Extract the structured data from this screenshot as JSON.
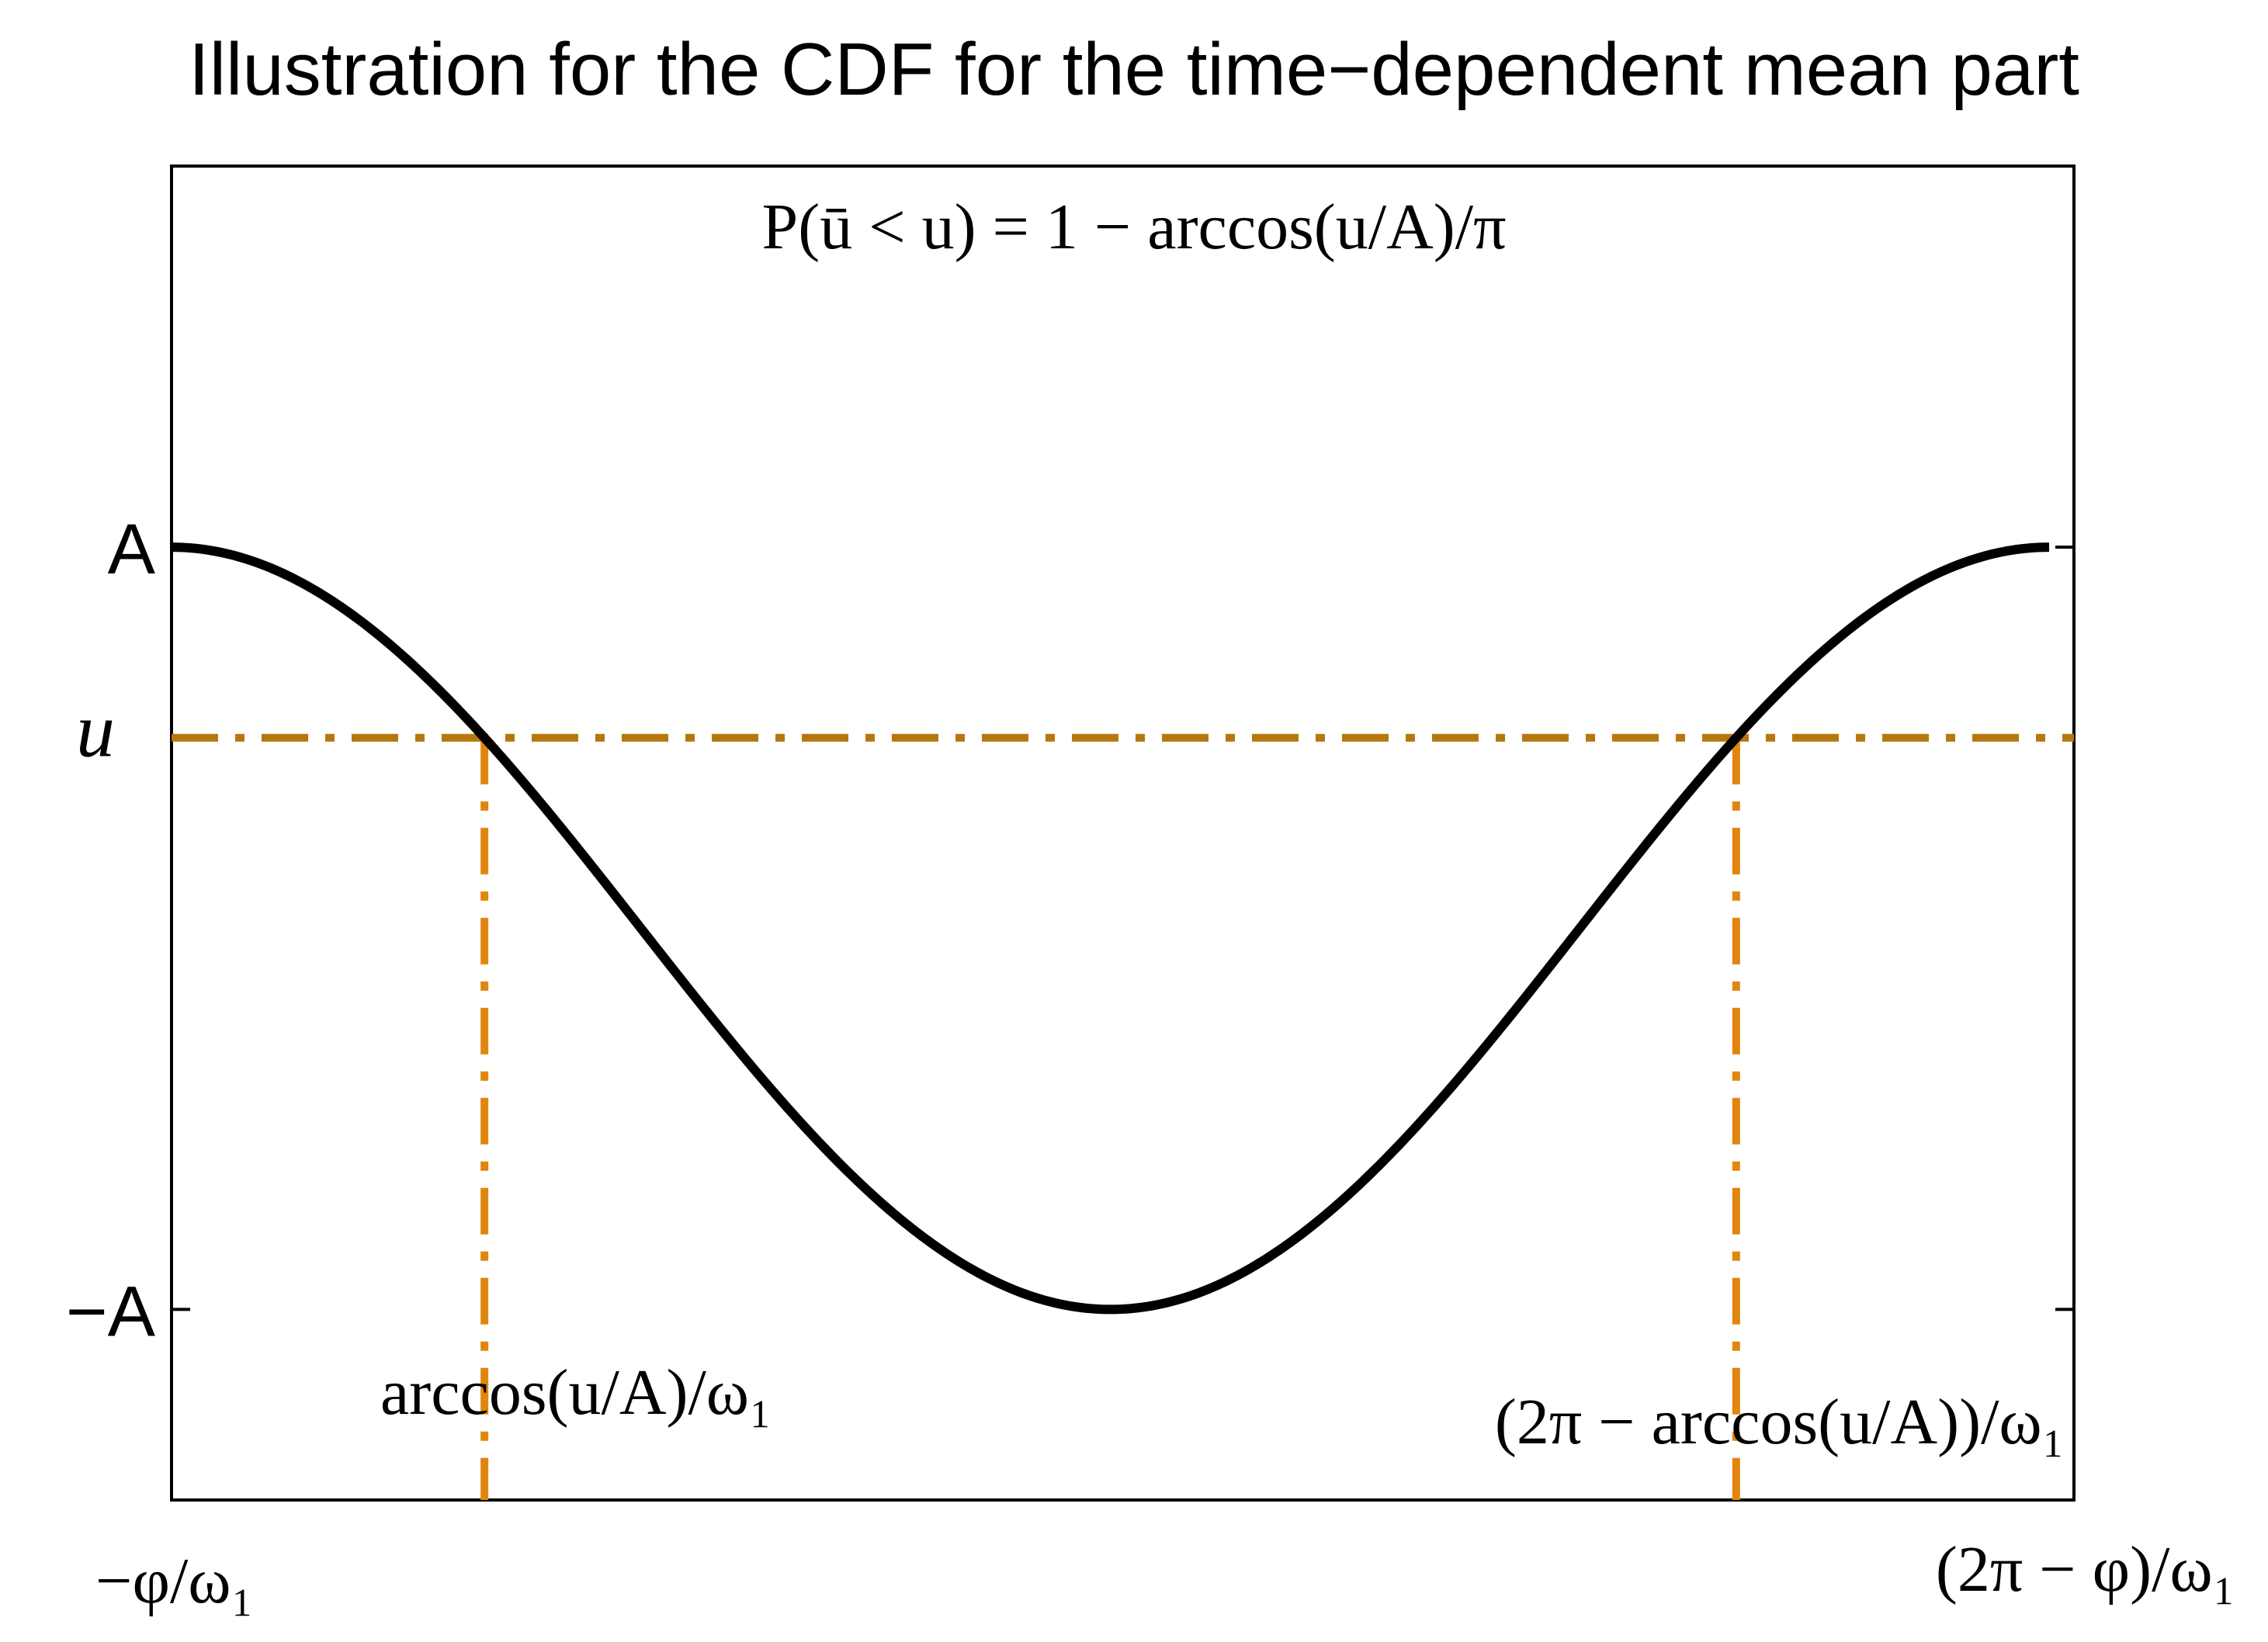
{
  "chart_data": {
    "type": "line",
    "title": "Illustration for the CDF for the time−dependent mean part",
    "annotation": "P(ū < u) = 1 − arccos(u/A)/π",
    "x_domain": [
      0,
      6.283185307
    ],
    "ylim": [
      -1.5,
      2.0
    ],
    "amplitude": 1.0,
    "u_level": 0.5,
    "series": [
      {
        "name": "mean part",
        "function": "A*cos(t)",
        "color": "#000000"
      }
    ],
    "xticks": [
      {
        "value": 0,
        "label": "−φ/ω₁"
      },
      {
        "value": 6.283185307,
        "label": "(2π − φ)/ω₁"
      }
    ],
    "yticks": [
      {
        "value": 1.0,
        "label": "A"
      },
      {
        "value": 0.5,
        "label": "u"
      },
      {
        "value": -1.0,
        "label": "−A"
      }
    ],
    "intersections": [
      {
        "value": 1.047197551,
        "label": "arccos(u/A)/ω₁"
      },
      {
        "value": 5.235987756,
        "label": "(2π − arccos(u/A))/ω₁"
      }
    ],
    "colors": {
      "curve": "#000000",
      "horizontal_line": "#b5780c",
      "vertical_lines": "#e0860e",
      "axes": "#000000"
    }
  }
}
